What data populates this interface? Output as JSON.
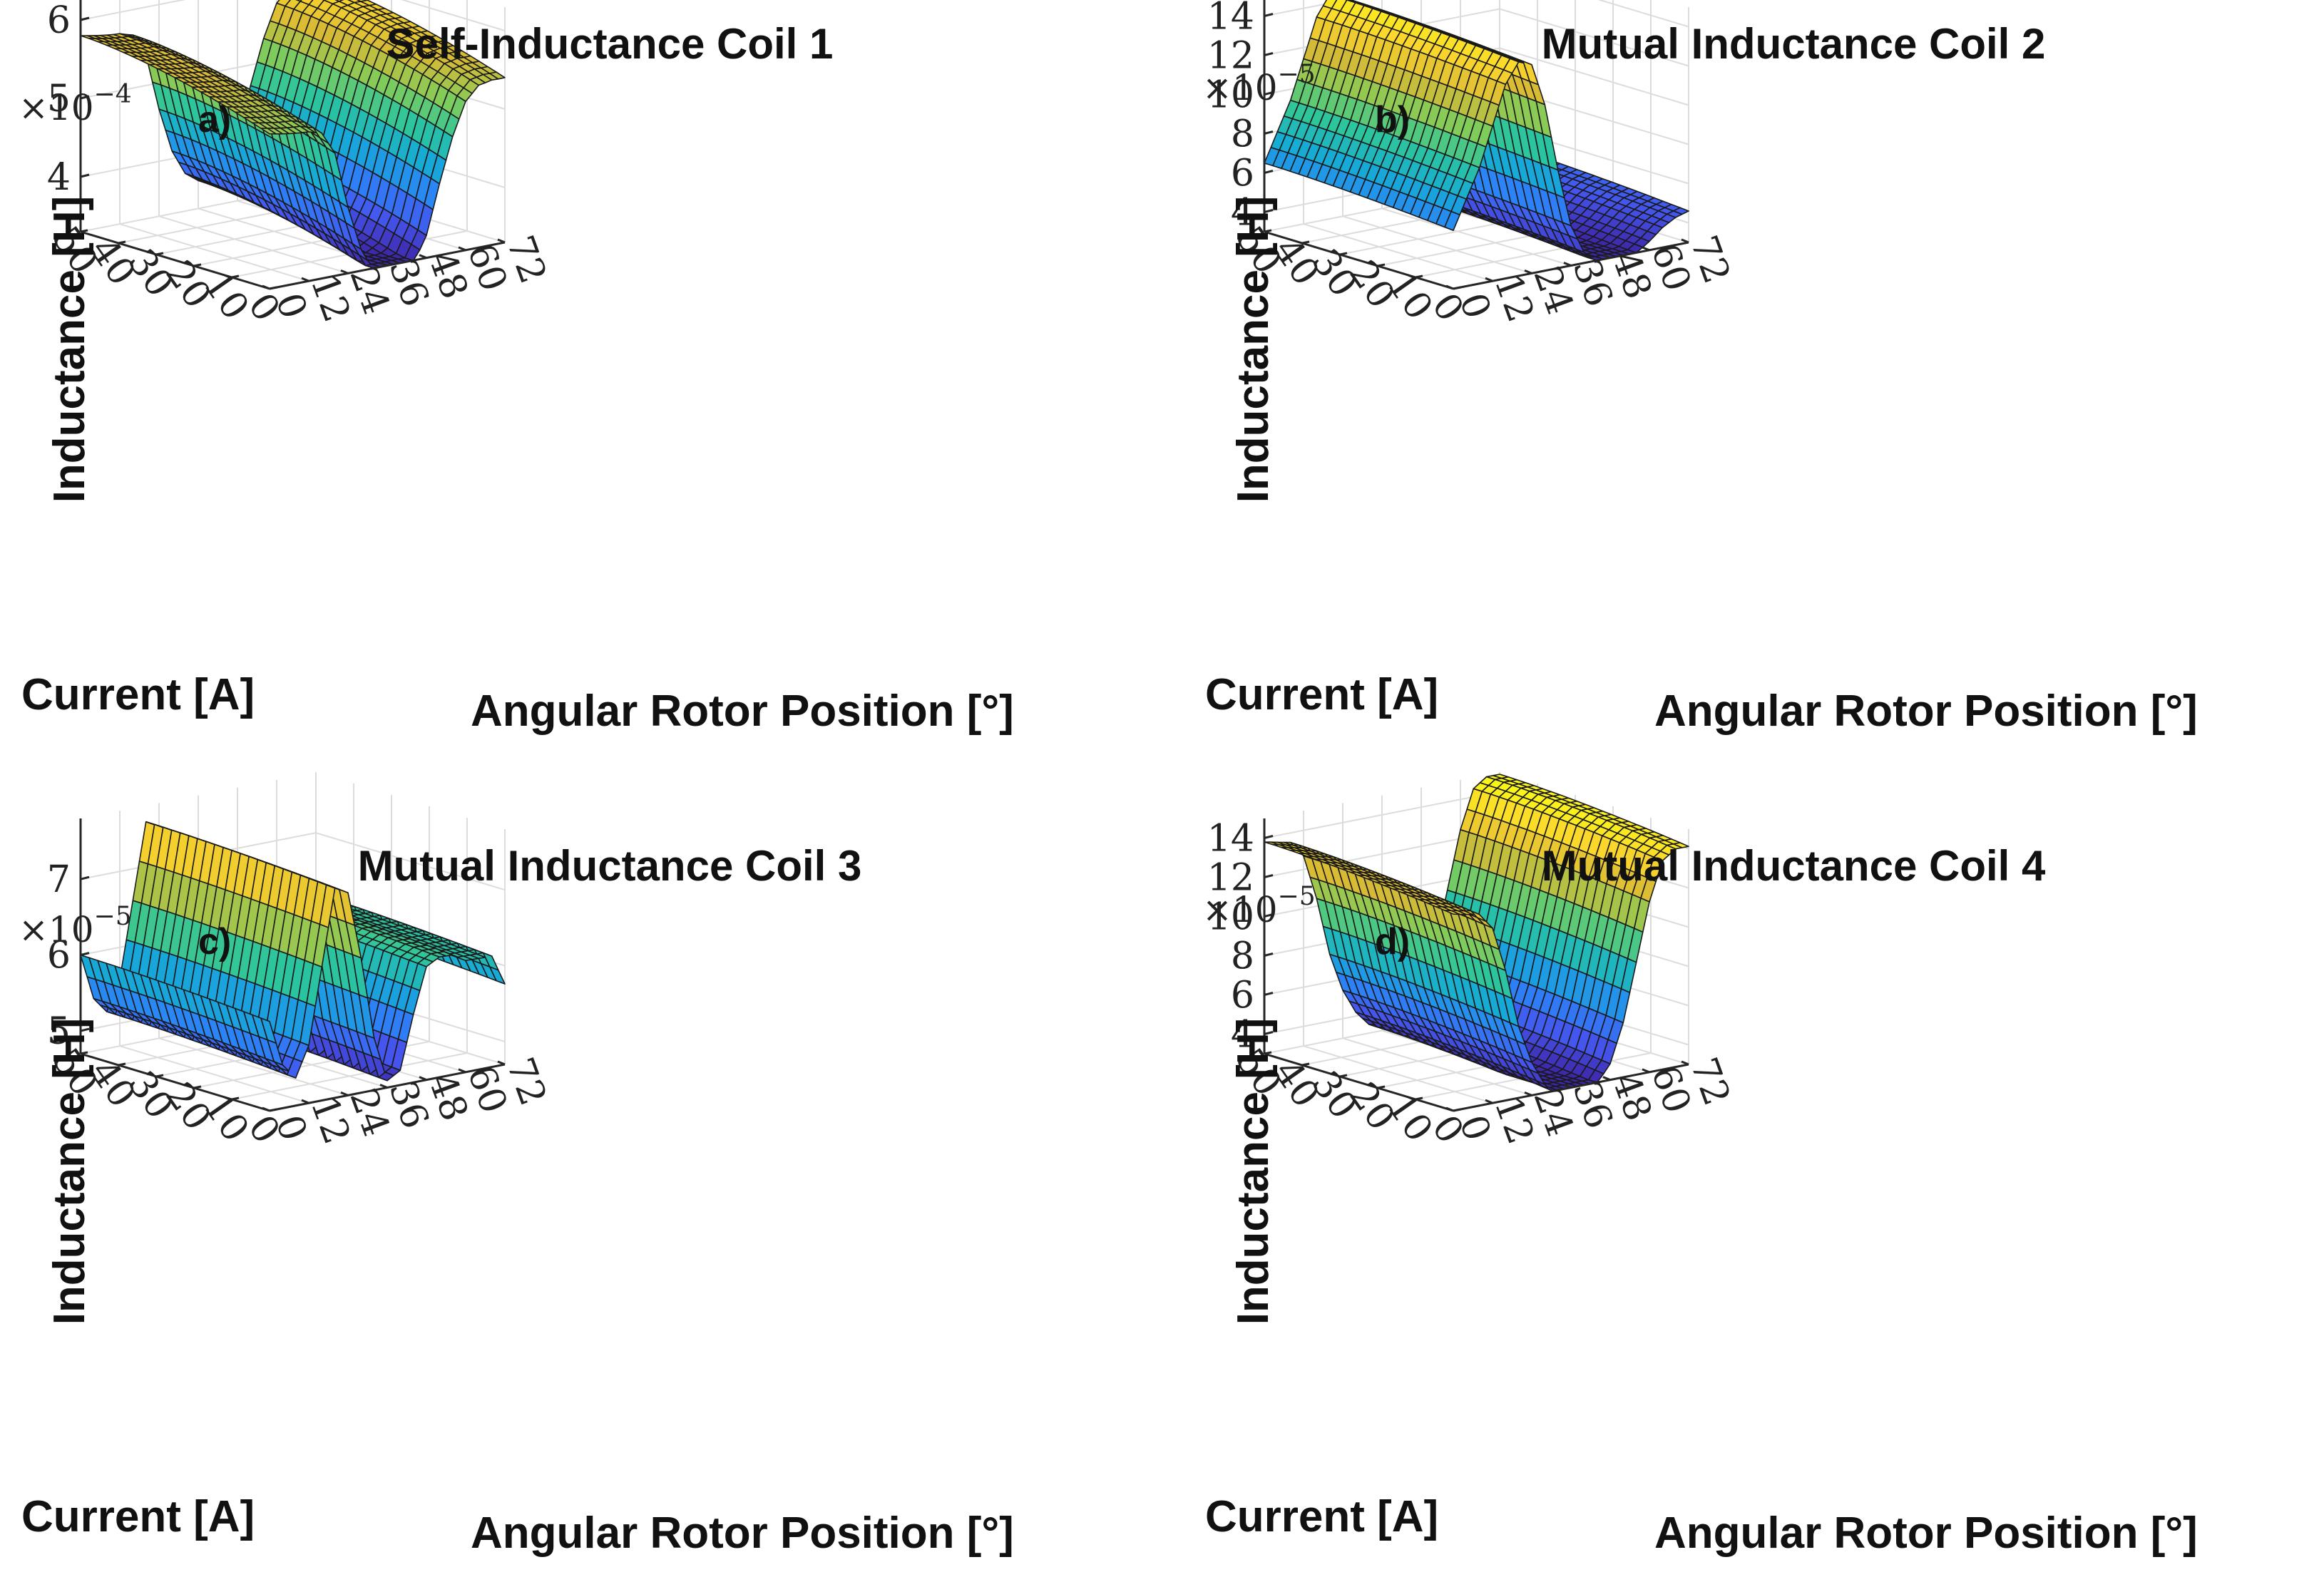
{
  "colors": {
    "colormap": [
      "#3e26a8",
      "#4456ee",
      "#2c83f7",
      "#16aad6",
      "#2cc59d",
      "#82cc59",
      "#d7ba35",
      "#fbd62c",
      "#f9fb15"
    ],
    "mesh_edge": "#1a1a1a",
    "grid": "#dcdcdc",
    "axis": "#262626"
  },
  "chart_data": [
    {
      "type": "surface",
      "panel": "a)",
      "title": "Self-Inductance Coil 1",
      "xlabel": "Angular Rotor Position [°]",
      "ylabel": "Current [A]",
      "zlabel": "Inductance [H]",
      "z_exponent": "×10",
      "z_exponent_power": "−4",
      "x_ticks": [
        "0",
        "12",
        "24",
        "36",
        "48",
        "60",
        "72"
      ],
      "y_ticks": [
        "0",
        "10",
        "20",
        "30",
        "40",
        "50"
      ],
      "z_ticks": [
        "4",
        "5",
        "6"
      ],
      "xlim": [
        0,
        72
      ],
      "ylim": [
        0,
        50
      ],
      "zlim": [
        3.3,
        6.3
      ],
      "profile": {
        "x": [
          0,
          12,
          16,
          20,
          24,
          28,
          32,
          36,
          40,
          44,
          48,
          52,
          56,
          60,
          64,
          68,
          72
        ],
        "z": [
          5.8,
          5.8,
          5.75,
          5.45,
          4.7,
          4.1,
          3.75,
          3.6,
          3.6,
          3.7,
          4.05,
          4.7,
          5.3,
          5.75,
          5.95,
          6.0,
          6.0
        ]
      },
      "current_droop": 1.5
    },
    {
      "type": "surface",
      "panel": "b)",
      "title": "Mutual Inductance Coil 2",
      "xlabel": "Angular Rotor Position [°]",
      "ylabel": "Current [A]",
      "zlabel": "Inductance [H]",
      "z_exponent": "×10",
      "z_exponent_power": "−5",
      "x_ticks": [
        "0",
        "12",
        "24",
        "36",
        "48",
        "60",
        "72"
      ],
      "y_ticks": [
        "0",
        "10",
        "20",
        "30",
        "40",
        "50"
      ],
      "z_ticks": [
        "4",
        "6",
        "8",
        "10",
        "12",
        "14"
      ],
      "xlim": [
        0,
        72
      ],
      "ylim": [
        0,
        50
      ],
      "zlim": [
        3.0,
        15.0
      ],
      "profile": {
        "x": [
          0,
          8,
          16,
          20,
          24,
          28,
          32,
          36,
          40,
          44,
          48,
          52,
          56,
          60,
          64,
          68,
          72
        ],
        "z": [
          6.5,
          9.5,
          13.5,
          14.5,
          14.2,
          12.0,
          8.5,
          5.5,
          4.0,
          3.4,
          3.2,
          3.2,
          3.5,
          4.0,
          4.6,
          5.0,
          5.2
        ]
      },
      "current_droop": 1.5
    },
    {
      "type": "surface",
      "panel": "c)",
      "title": "Mutual Inductance Coil 3",
      "xlabel": "Angular Rotor Position [°]",
      "ylabel": "Current [A]",
      "zlabel": "Inductance [H]",
      "z_exponent": "×10",
      "z_exponent_power": "−5",
      "x_ticks": [
        "0",
        "12",
        "24",
        "36",
        "48",
        "60",
        "72"
      ],
      "y_ticks": [
        "0",
        "10",
        "20",
        "30",
        "40",
        "50"
      ],
      "z_ticks": [
        "5",
        "6",
        "7"
      ],
      "xlim": [
        0,
        72
      ],
      "ylim": [
        0,
        50
      ],
      "zlim": [
        4.7,
        7.8
      ],
      "profile": {
        "x": [
          0,
          4,
          8,
          12,
          16,
          20,
          24,
          28,
          32,
          36,
          40,
          44,
          48,
          52,
          56,
          60,
          64,
          68,
          72
        ],
        "z": [
          6.0,
          5.4,
          5.2,
          5.6,
          6.6,
          7.6,
          7.5,
          6.6,
          5.5,
          4.9,
          5.0,
          5.7,
          6.3,
          6.4,
          6.4,
          6.3,
          6.3,
          6.3,
          5.9
        ]
      },
      "current_droop": 0.35
    },
    {
      "type": "surface",
      "panel": "d)",
      "title": "Mutual Inductance Coil 4",
      "xlabel": "Angular Rotor Position [°]",
      "ylabel": "Current [A]",
      "zlabel": "Inductance [H]",
      "z_exponent": "×10",
      "z_exponent_power": "−5",
      "x_ticks": [
        "0",
        "12",
        "24",
        "36",
        "48",
        "60",
        "72"
      ],
      "y_ticks": [
        "0",
        "10",
        "20",
        "30",
        "40",
        "50"
      ],
      "z_ticks": [
        "4",
        "6",
        "8",
        "10",
        "12",
        "14"
      ],
      "xlim": [
        0,
        72
      ],
      "ylim": [
        0,
        50
      ],
      "zlim": [
        3.0,
        15.0
      ],
      "profile": {
        "x": [
          0,
          8,
          12,
          16,
          20,
          24,
          28,
          32,
          36,
          40,
          44,
          48,
          52,
          56,
          60,
          64,
          68,
          72
        ],
        "z": [
          13.8,
          13.6,
          12.8,
          10.5,
          7.5,
          5.5,
          4.2,
          3.4,
          3.2,
          3.3,
          3.6,
          4.5,
          6.5,
          9.5,
          12.5,
          14.5,
          15.0,
          15.0
        ]
      },
      "current_droop": 2.2
    }
  ]
}
